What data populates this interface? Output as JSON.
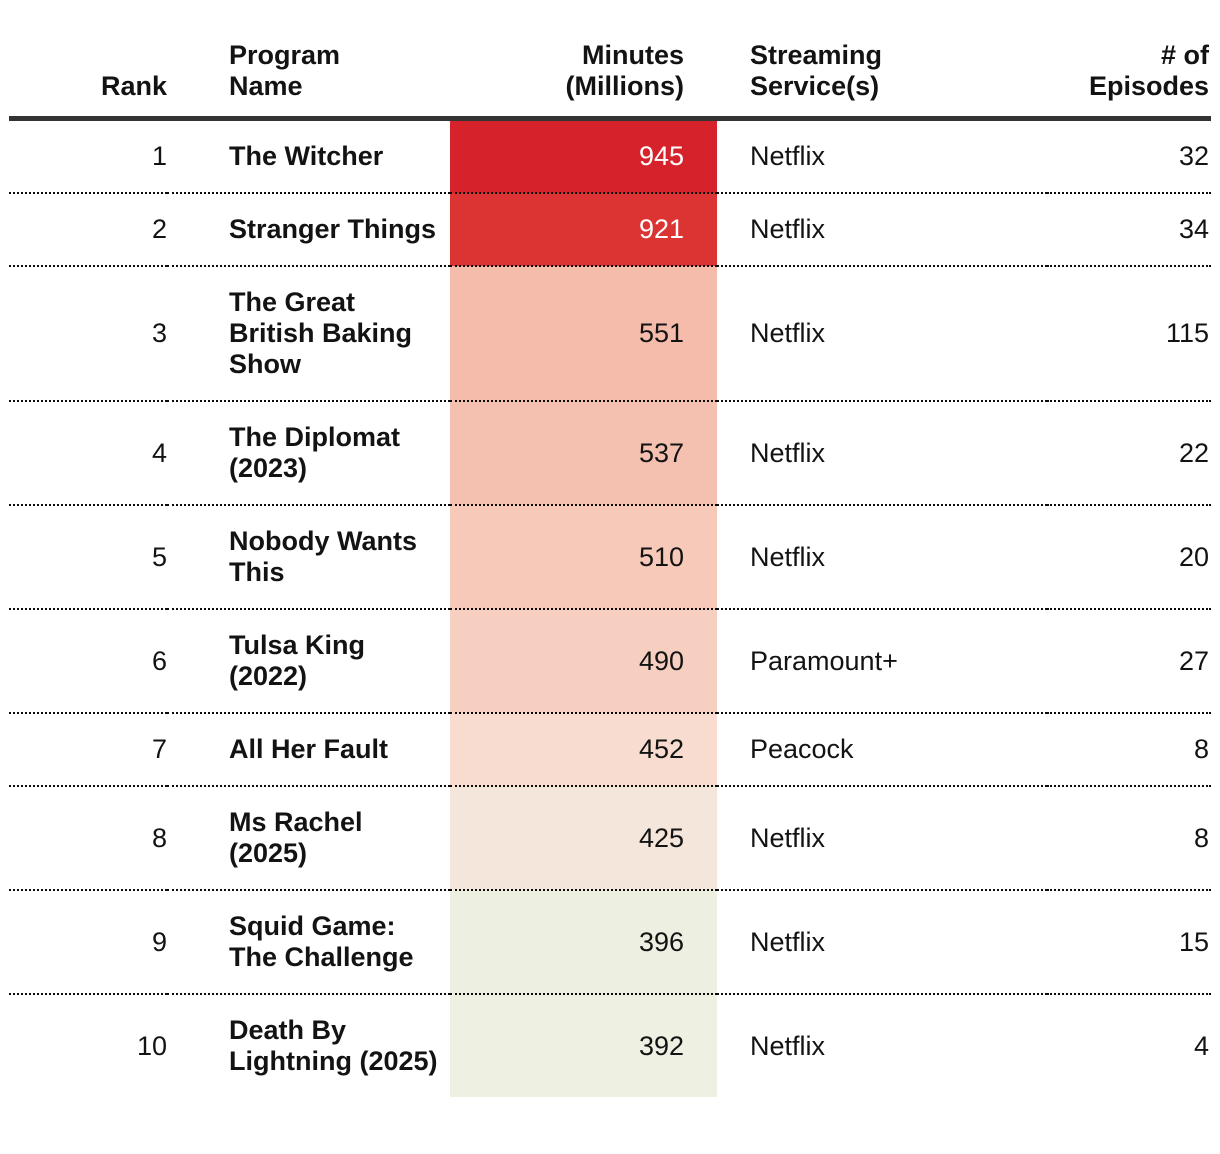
{
  "table": {
    "headers": {
      "rank": "Rank",
      "program": "Program\nName",
      "minutes": "Minutes\n(Millions)",
      "service": "Streaming\nService(s)",
      "episodes": "# of\nEpisodes"
    },
    "rows": [
      {
        "rank": "1",
        "program": "The Witcher",
        "minutes": "945",
        "service": "Netflix",
        "episodes": "32",
        "minutes_bg": "#d6232b",
        "minutes_fg": "#ffffff"
      },
      {
        "rank": "2",
        "program": "Stranger Things",
        "minutes": "921",
        "service": "Netflix",
        "episodes": "34",
        "minutes_bg": "#dc3432",
        "minutes_fg": "#ffffff"
      },
      {
        "rank": "3",
        "program": "The Great British Baking Show",
        "minutes": "551",
        "service": "Netflix",
        "episodes": "115",
        "minutes_bg": "#f5bcab",
        "minutes_fg": "#131313"
      },
      {
        "rank": "4",
        "program": "The Diplomat (2023)",
        "minutes": "537",
        "service": "Netflix",
        "episodes": "22",
        "minutes_bg": "#f4c0b0",
        "minutes_fg": "#131313"
      },
      {
        "rank": "5",
        "program": "Nobody Wants This",
        "minutes": "510",
        "service": "Netflix",
        "episodes": "20",
        "minutes_bg": "#f6c9b9",
        "minutes_fg": "#131313"
      },
      {
        "rank": "6",
        "program": "Tulsa King (2022)",
        "minutes": "490",
        "service": "Paramount+",
        "episodes": "27",
        "minutes_bg": "#f7cfc1",
        "minutes_fg": "#131313"
      },
      {
        "rank": "7",
        "program": "All Her Fault",
        "minutes": "452",
        "service": "Peacock",
        "episodes": "8",
        "minutes_bg": "#f8dccf",
        "minutes_fg": "#131313"
      },
      {
        "rank": "8",
        "program": "Ms Rachel (2025)",
        "minutes": "425",
        "service": "Netflix",
        "episodes": "8",
        "minutes_bg": "#f4e6da",
        "minutes_fg": "#131313"
      },
      {
        "rank": "9",
        "program": "Squid Game: The Challenge",
        "minutes": "396",
        "service": "Netflix",
        "episodes": "15",
        "minutes_bg": "#edefe1",
        "minutes_fg": "#131313"
      },
      {
        "rank": "10",
        "program": "Death By Lightning (2025)",
        "minutes": "392",
        "service": "Netflix",
        "episodes": "4",
        "minutes_bg": "#eef0e2",
        "minutes_fg": "#131313"
      }
    ]
  },
  "chart_data": {
    "type": "table",
    "columns": [
      "Rank",
      "Program Name",
      "Minutes (Millions)",
      "Streaming Service(s)",
      "# of Episodes"
    ],
    "rows": [
      [
        1,
        "The Witcher",
        945,
        "Netflix",
        32
      ],
      [
        2,
        "Stranger Things",
        921,
        "Netflix",
        34
      ],
      [
        3,
        "The Great British Baking Show",
        551,
        "Netflix",
        115
      ],
      [
        4,
        "The Diplomat (2023)",
        537,
        "Netflix",
        22
      ],
      [
        5,
        "Nobody Wants This",
        510,
        "Netflix",
        20
      ],
      [
        6,
        "Tulsa King (2022)",
        490,
        "Paramount+",
        27
      ],
      [
        7,
        "All Her Fault",
        452,
        "Peacock",
        8
      ],
      [
        8,
        "Ms Rachel (2025)",
        425,
        "Netflix",
        8
      ],
      [
        9,
        "Squid Game: The Challenge",
        396,
        "Netflix",
        15
      ],
      [
        10,
        "Death By Lightning (2025)",
        392,
        "Netflix",
        4
      ]
    ],
    "heatmap_column": "Minutes (Millions)",
    "heatmap_colors": [
      "#d6232b",
      "#dc3432",
      "#f5bcab",
      "#f4c0b0",
      "#f6c9b9",
      "#f7cfc1",
      "#f8dccf",
      "#f4e6da",
      "#edefe1",
      "#eef0e2"
    ],
    "value_range": [
      392,
      945
    ]
  }
}
